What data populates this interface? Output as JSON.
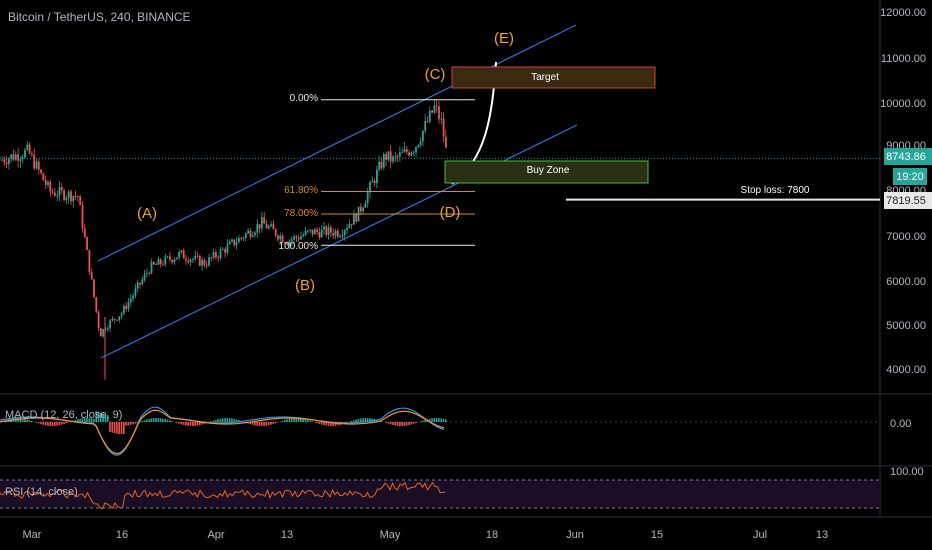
{
  "header": {
    "symbol": "Bitcoin / TetherUS, 240, BINANCE"
  },
  "colors": {
    "background": "#000000",
    "axis_text": "#b2b5be",
    "channel": "#2f6fd6",
    "wave_label": "#f0a030",
    "fib_orange": "#e08a1e",
    "fib_white": "#e8e8e8",
    "candle_up": "#26a69a",
    "candle_down": "#ef5350",
    "target_fill": "#3a2a10",
    "target_border": "#d23a3a",
    "buy_fill": "#2a3014",
    "buy_border": "#3fbf3f",
    "price_label_bg": "#26a69a",
    "stop_label_bg": "#e8e8e8",
    "macd_line": "#2196f3",
    "signal_line": "#ff8f1f",
    "rsi_line": "#e8621e",
    "rsi_band": "#1a0e26"
  },
  "price_axis": {
    "ticks": [
      "12000.00",
      "11000.00",
      "10000.00",
      "9000.00",
      "8000.00",
      "7000.00",
      "6000.00",
      "5000.00",
      "4000.00"
    ]
  },
  "time_axis": {
    "ticks": [
      "Mar",
      "16",
      "Apr",
      "13",
      "May",
      "18",
      "Jun",
      "15",
      "Jul",
      "13"
    ]
  },
  "current_price": {
    "value": "8743.86",
    "countdown": "19:20"
  },
  "stop_loss": {
    "label": "Stop loss: 7800",
    "value": "7819.55"
  },
  "zones": {
    "target": {
      "label": "Target"
    },
    "buy": {
      "label": "Buy Zone"
    }
  },
  "fib_levels": [
    {
      "label": "0.00%",
      "color": "#e8e8e8"
    },
    {
      "label": "61.80%",
      "color": "#e08a1e"
    },
    {
      "label": "78.00%",
      "color": "#e08a1e"
    },
    {
      "label": "100.00%",
      "color": "#e8e8e8"
    }
  ],
  "waves": [
    "(A)",
    "(B)",
    "(C)",
    "(D)",
    "(E)"
  ],
  "macd": {
    "label": "MACD (12, 26, close, 9)",
    "tick": "0.00"
  },
  "rsi": {
    "label": "RSI (14, close)",
    "tick": "100.00"
  },
  "chart_data": {
    "type": "candlestick",
    "symbol": "Bitcoin / TetherUS",
    "interval": "240",
    "exchange": "BINANCE",
    "x": [
      "Mar 1",
      "Mar 5",
      "Mar 8",
      "Mar 10",
      "Mar 12",
      "Mar 13",
      "Mar 16",
      "Mar 20",
      "Mar 25",
      "Mar 30",
      "Apr 3",
      "Apr 8",
      "Apr 13",
      "Apr 18",
      "Apr 22",
      "Apr 25",
      "Apr 29",
      "May 1",
      "May 5",
      "May 8",
      "May 9",
      "May 10"
    ],
    "close": [
      8700,
      8900,
      8000,
      7900,
      4800,
      5000,
      5300,
      6300,
      6600,
      6400,
      6800,
      7300,
      6900,
      7100,
      7100,
      7500,
      8800,
      8700,
      9000,
      9900,
      9500,
      8750
    ],
    "ylim": [
      3500,
      12300
    ],
    "ytick_values": [
      12000,
      11000,
      10000,
      9000,
      8000,
      7000,
      6000,
      5000,
      4000
    ],
    "current_price": 8743.86,
    "stop_loss": 7800,
    "stop_loss_marker": 7819.55,
    "zones": [
      {
        "name": "Target",
        "low": 10300,
        "high": 10750
      },
      {
        "name": "Buy Zone",
        "low": 8000,
        "high": 8500
      }
    ],
    "fibonacci": [
      {
        "level": "0.00%",
        "price": 10050
      },
      {
        "level": "61.80%",
        "price": 8000
      },
      {
        "level": "78.00%",
        "price": 7500
      },
      {
        "level": "100.00%",
        "price": 6800
      }
    ],
    "grid": false,
    "indicators": [
      "MACD (12, 26, close, 9)",
      "RSI (14, close)"
    ]
  }
}
